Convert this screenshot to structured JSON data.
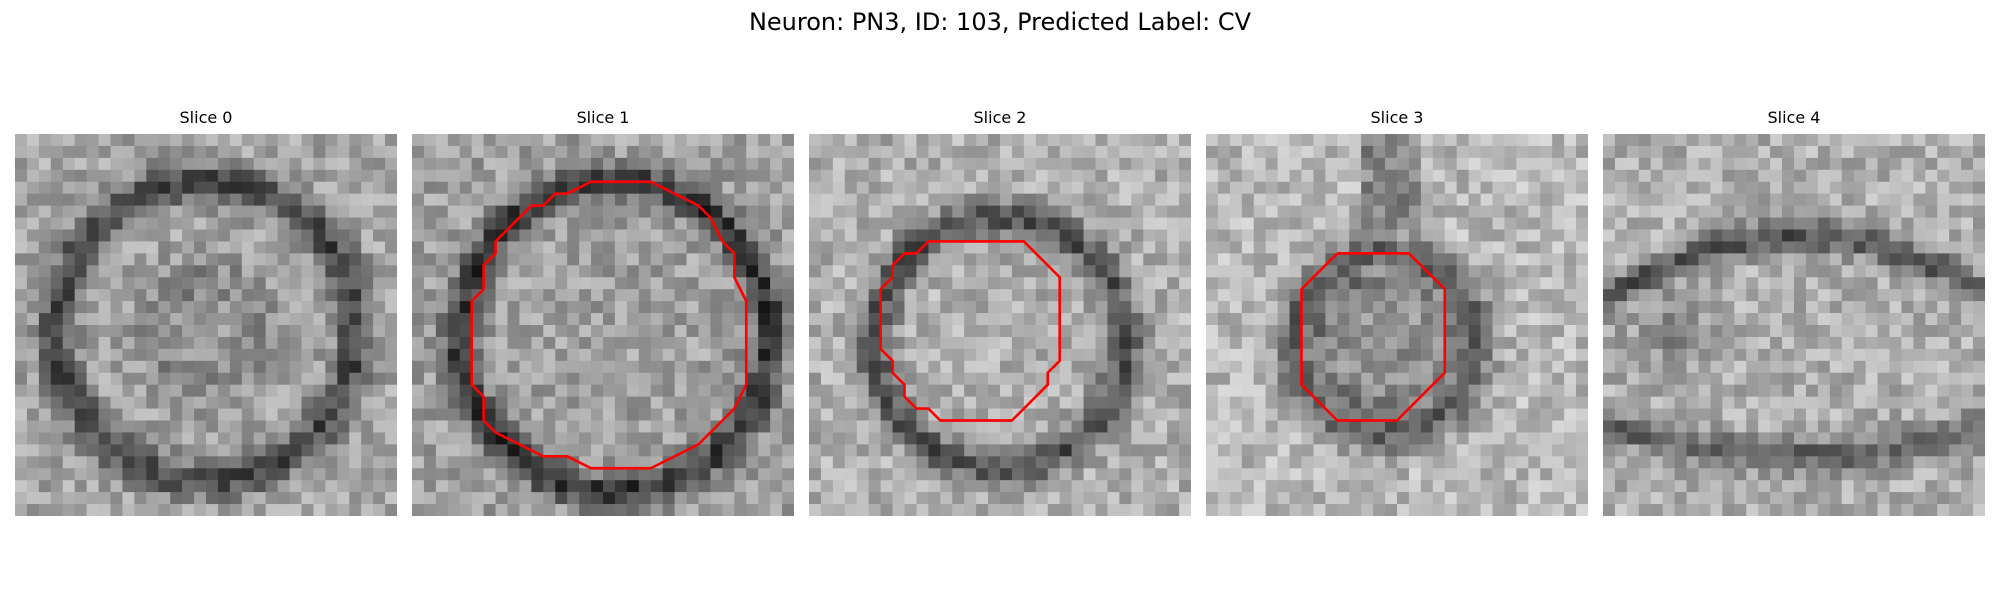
{
  "figure": {
    "title": "Neuron: PN3, ID: 103, Predicted Label: CV"
  },
  "panels": [
    {
      "title": "Slice 0",
      "contour": []
    },
    {
      "title": "Slice 1",
      "contour": [
        [
          13,
          5
        ],
        [
          15,
          4
        ],
        [
          20,
          4
        ],
        [
          22,
          5
        ],
        [
          24,
          6
        ],
        [
          25,
          7
        ],
        [
          26,
          9
        ],
        [
          27,
          10
        ],
        [
          27,
          12
        ],
        [
          28,
          14
        ],
        [
          28,
          21
        ],
        [
          27,
          23
        ],
        [
          26,
          24
        ],
        [
          25,
          25
        ],
        [
          24,
          26
        ],
        [
          22,
          27
        ],
        [
          20,
          28
        ],
        [
          15,
          28
        ],
        [
          13,
          27
        ],
        [
          11,
          27
        ],
        [
          9,
          26
        ],
        [
          7,
          25
        ],
        [
          6,
          24
        ],
        [
          6,
          22
        ],
        [
          5,
          21
        ],
        [
          5,
          14
        ],
        [
          6,
          13
        ],
        [
          6,
          11
        ],
        [
          7,
          10
        ],
        [
          7,
          9
        ],
        [
          8,
          8
        ],
        [
          9,
          7
        ],
        [
          10,
          6
        ],
        [
          11,
          6
        ],
        [
          12,
          5
        ],
        [
          13,
          5
        ]
      ]
    },
    {
      "title": "Slice 2",
      "contour": [
        [
          11,
          9
        ],
        [
          18,
          9
        ],
        [
          21,
          12
        ],
        [
          21,
          19
        ],
        [
          20,
          20
        ],
        [
          20,
          21
        ],
        [
          17,
          24
        ],
        [
          11,
          24
        ],
        [
          10,
          23
        ],
        [
          9,
          23
        ],
        [
          8,
          22
        ],
        [
          8,
          21
        ],
        [
          7,
          20
        ],
        [
          7,
          19
        ],
        [
          6,
          18
        ],
        [
          6,
          13
        ],
        [
          7,
          12
        ],
        [
          7,
          11
        ],
        [
          8,
          10
        ],
        [
          9,
          10
        ],
        [
          10,
          9
        ],
        [
          11,
          9
        ]
      ]
    },
    {
      "title": "Slice 3",
      "contour": [
        [
          11,
          10
        ],
        [
          17,
          10
        ],
        [
          20,
          13
        ],
        [
          20,
          20
        ],
        [
          16,
          24
        ],
        [
          11,
          24
        ],
        [
          8,
          21
        ],
        [
          8,
          13
        ],
        [
          11,
          10
        ]
      ]
    },
    {
      "title": "Slice 4",
      "contour": []
    }
  ],
  "colors": {
    "contour": "#ff0000"
  }
}
